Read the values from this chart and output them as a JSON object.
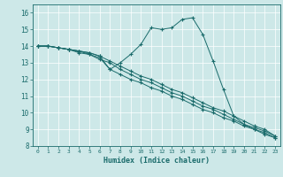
{
  "title": "",
  "xlabel": "Humidex (Indice chaleur)",
  "ylabel": "",
  "xlim": [
    -0.5,
    23.5
  ],
  "ylim": [
    8,
    16.5
  ],
  "yticks": [
    8,
    9,
    10,
    11,
    12,
    13,
    14,
    15,
    16
  ],
  "xticks": [
    0,
    1,
    2,
    3,
    4,
    5,
    6,
    7,
    8,
    9,
    10,
    11,
    12,
    13,
    14,
    15,
    16,
    17,
    18,
    19,
    20,
    21,
    22,
    23
  ],
  "bg_color": "#cde8e8",
  "line_color": "#1a6b6b",
  "grid_color": "#ffffff",
  "series": [
    {
      "x": [
        0,
        1,
        2,
        3,
        4,
        5,
        6,
        7,
        8,
        9,
        10,
        11,
        12,
        13,
        14,
        15,
        16,
        17,
        18,
        19,
        20,
        21,
        22,
        23
      ],
      "y": [
        14.0,
        14.0,
        13.9,
        13.8,
        13.7,
        13.6,
        13.4,
        12.6,
        13.0,
        13.5,
        14.1,
        15.1,
        15.0,
        15.1,
        15.6,
        15.7,
        14.7,
        13.1,
        11.4,
        9.8,
        9.3,
        9.0,
        8.7,
        8.5
      ]
    },
    {
      "x": [
        0,
        1,
        2,
        3,
        4,
        5,
        6,
        7,
        8,
        9,
        10,
        11,
        12,
        13,
        14,
        15,
        16,
        17,
        18,
        19,
        20,
        21,
        22,
        23
      ],
      "y": [
        14.0,
        14.0,
        13.9,
        13.8,
        13.6,
        13.5,
        13.2,
        13.0,
        12.6,
        12.3,
        12.0,
        11.8,
        11.5,
        11.2,
        11.0,
        10.7,
        10.4,
        10.2,
        9.9,
        9.6,
        9.3,
        9.1,
        8.9,
        8.6
      ]
    },
    {
      "x": [
        0,
        1,
        2,
        3,
        4,
        5,
        6,
        7,
        8,
        9,
        10,
        11,
        12,
        13,
        14,
        15,
        16,
        17,
        18,
        19,
        20,
        21,
        22,
        23
      ],
      "y": [
        14.0,
        14.0,
        13.9,
        13.8,
        13.7,
        13.6,
        13.4,
        13.1,
        12.8,
        12.5,
        12.2,
        12.0,
        11.7,
        11.4,
        11.2,
        10.9,
        10.6,
        10.3,
        10.1,
        9.8,
        9.5,
        9.2,
        9.0,
        8.6
      ]
    },
    {
      "x": [
        0,
        1,
        2,
        3,
        4,
        5,
        6,
        7,
        8,
        9,
        10,
        11,
        12,
        13,
        14,
        15,
        16,
        17,
        18,
        19,
        20,
        21,
        22,
        23
      ],
      "y": [
        14.0,
        14.0,
        13.9,
        13.8,
        13.7,
        13.5,
        13.3,
        12.6,
        12.3,
        12.0,
        11.8,
        11.5,
        11.3,
        11.0,
        10.8,
        10.5,
        10.2,
        10.0,
        9.7,
        9.5,
        9.2,
        9.0,
        8.8,
        8.5
      ]
    }
  ]
}
